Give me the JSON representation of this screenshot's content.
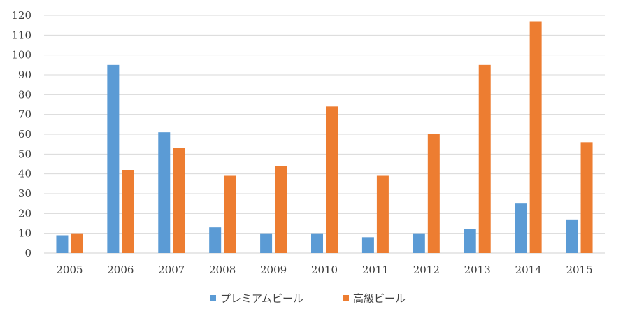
{
  "chart_data": {
    "type": "bar",
    "categories": [
      "2005",
      "2006",
      "2007",
      "2008",
      "2009",
      "2010",
      "2011",
      "2012",
      "2013",
      "2014",
      "2015"
    ],
    "series": [
      {
        "name": "プレミアムビール",
        "color": "#5b9bd5",
        "values": [
          9,
          95,
          61,
          13,
          10,
          10,
          8,
          10,
          12,
          25,
          17
        ]
      },
      {
        "name": "高級ビール",
        "color": "#ed7d31",
        "values": [
          10,
          42,
          53,
          39,
          44,
          74,
          39,
          60,
          95,
          117,
          56
        ]
      }
    ],
    "ylim": [
      0,
      120
    ],
    "yticks": [
      0,
      10,
      20,
      30,
      40,
      50,
      60,
      70,
      80,
      90,
      100,
      110,
      120
    ],
    "grid": true,
    "legend": "bottom-center"
  }
}
